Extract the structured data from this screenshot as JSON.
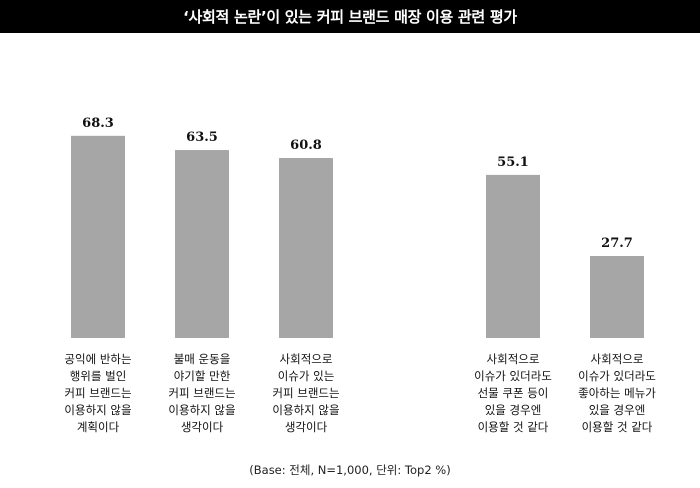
{
  "title": "‘사회적 논란’이 있는 커피 브랜드 매장 이용 관련 평가",
  "footnote": "(Base: 전체, N=1,000, 단위: Top2 %)",
  "colors": {
    "bar": "#a6a6a6",
    "title_bg": "#000000",
    "title_text": "#ffffff"
  },
  "chart_data": {
    "type": "bar",
    "title": "‘사회적 논란’이 있는 커피 브랜드 매장 이용 관련 평가",
    "xlabel": "",
    "ylabel": "",
    "grid": false,
    "categories": [
      [
        "공익에 반하는",
        "행위를 벌인",
        "커피 브랜드는",
        "이용하지 않을",
        "계획이다"
      ],
      [
        "불매 운동을",
        "야기할 만한",
        "커피 브랜드는",
        "이용하지 않을",
        "생각이다"
      ],
      [
        "사회적으로",
        "이슈가 있는",
        "커피 브랜드는",
        "이용하지 않을",
        "생각이다"
      ],
      [
        "사회적으로",
        "이슈가 있더라도",
        "선물 쿠폰 등이",
        "있을 경우엔",
        "이용할 것 같다"
      ],
      [
        "사회적으로",
        "이슈가 있더라도",
        "좋아하는 메뉴가",
        "있을 경우엔",
        "이용할 것 같다"
      ]
    ],
    "values": [
      68.3,
      63.5,
      60.8,
      55.1,
      27.7
    ],
    "data_labels": [
      "68.3",
      "63.5",
      "60.8",
      "55.1",
      "27.7"
    ]
  }
}
